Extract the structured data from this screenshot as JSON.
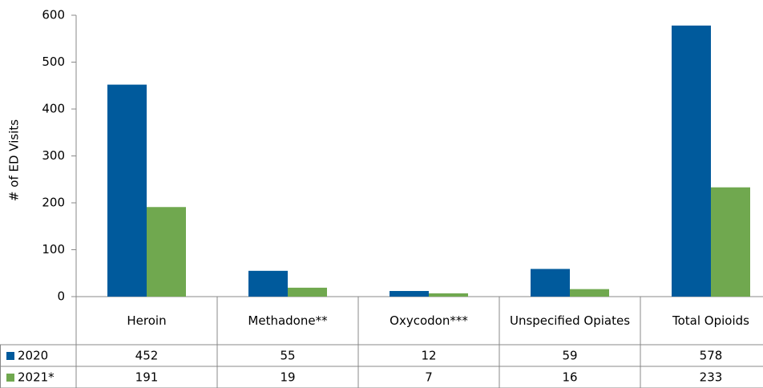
{
  "chart_data": {
    "type": "bar",
    "y_label": "# of ED Visits",
    "categories": [
      "Heroin",
      "Methadone**",
      "Oxycodon***",
      "Unspecified Opiates",
      "Total Opioids"
    ],
    "series": [
      {
        "name": "2020",
        "color": "#005a9c",
        "values": [
          452,
          55,
          12,
          59,
          578
        ]
      },
      {
        "name": "2021*",
        "color": "#70a84f",
        "values": [
          191,
          19,
          7,
          16,
          233
        ]
      }
    ],
    "ylim": [
      0,
      600
    ],
    "yticks": [
      0,
      100,
      200,
      300,
      400,
      500,
      600
    ],
    "data_table": true
  }
}
